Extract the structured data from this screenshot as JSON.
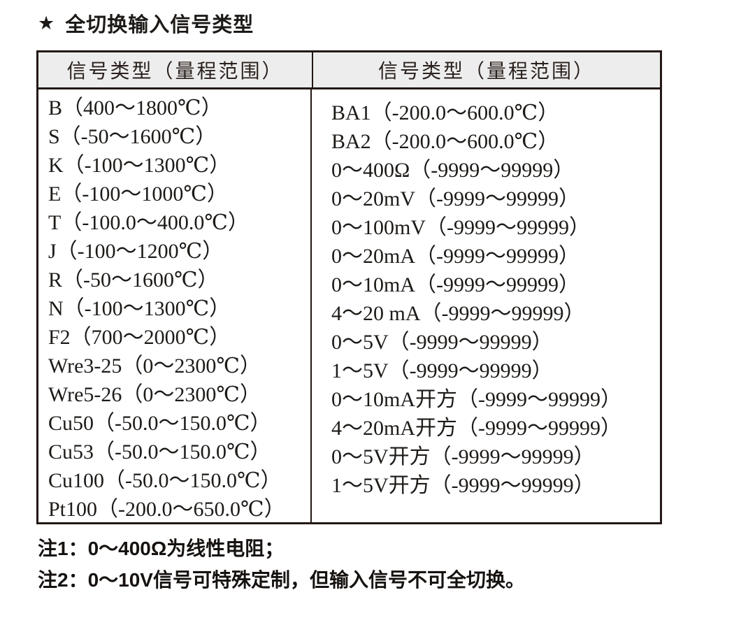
{
  "title": {
    "star": "★",
    "text": "全切换输入信号类型"
  },
  "table": {
    "header": [
      "信号类型（量程范围）",
      "信号类型（量程范围）"
    ],
    "left_rows": [
      "B（400～1800℃）",
      "S（-50～1600℃）",
      "K（-100～1300℃）",
      "E（-100～1000℃）",
      "T（-100.0～400.0℃）",
      "J（-100～1200℃）",
      "R（-50～1600℃）",
      "N（-100～1300℃）",
      "F2（700～2000℃）",
      "Wre3-25（0～2300℃）",
      "Wre5-26（0～2300℃）",
      "Cu50（-50.0～150.0℃）",
      "Cu53（-50.0～150.0℃）",
      "Cu100（-50.0～150.0℃）",
      "Pt100（-200.0～650.0℃）"
    ],
    "right_rows": [
      "BA1（-200.0～600.0℃）",
      "BA2（-200.0～600.0℃）",
      "0～400Ω（-9999～99999）",
      "0～20mV（-9999～99999）",
      "0～100mV（-9999～99999）",
      "0～20mA（-9999～99999）",
      "0～10mA（-9999～99999）",
      "4～20 mA（-9999～99999）",
      "0～5V（-9999～99999）",
      "1～5V（-9999～99999）",
      "0～10mA开方（-9999～99999）",
      "4～20mA开方（-9999～99999）",
      "0～5V开方（-9999～99999）",
      "1～5V开方（-9999～99999）"
    ]
  },
  "notes": [
    "注1：0～400Ω为线性电阻；",
    "注2：0～10V信号可特殊定制，但输入信号不可全切换。"
  ],
  "colors": {
    "border": "#231815",
    "header_background": "#ededed",
    "text": "#1d1a17"
  }
}
